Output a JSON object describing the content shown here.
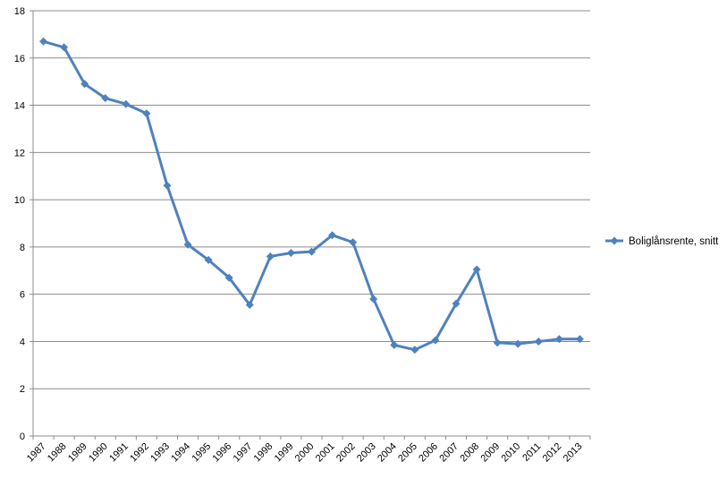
{
  "chart_data": {
    "type": "line",
    "title": "",
    "xlabel": "",
    "ylabel": "",
    "ylim": [
      0,
      18
    ],
    "y_ticks": [
      0,
      2,
      4,
      6,
      8,
      10,
      12,
      14,
      16,
      18
    ],
    "grid": "horizontal",
    "legend_position": "right",
    "categories": [
      "1987",
      "1988",
      "1989",
      "1990",
      "1991",
      "1992",
      "1993",
      "1994",
      "1995",
      "1996",
      "1997",
      "1998",
      "1999",
      "2000",
      "2001",
      "2002",
      "2003",
      "2004",
      "2005",
      "2006",
      "2007",
      "2008",
      "2009",
      "2010",
      "2011",
      "2012",
      "2013"
    ],
    "series": [
      {
        "name": "Boliglånsrente, snitt",
        "color": "#4f81bd",
        "marker": "diamond",
        "values": [
          16.7,
          16.45,
          14.9,
          14.3,
          14.05,
          13.65,
          10.6,
          8.1,
          7.45,
          6.7,
          5.55,
          7.6,
          7.75,
          7.8,
          8.5,
          8.2,
          5.8,
          3.85,
          3.65,
          4.05,
          5.6,
          7.05,
          3.95,
          3.9,
          4.0,
          4.1,
          4.1
        ]
      }
    ]
  }
}
